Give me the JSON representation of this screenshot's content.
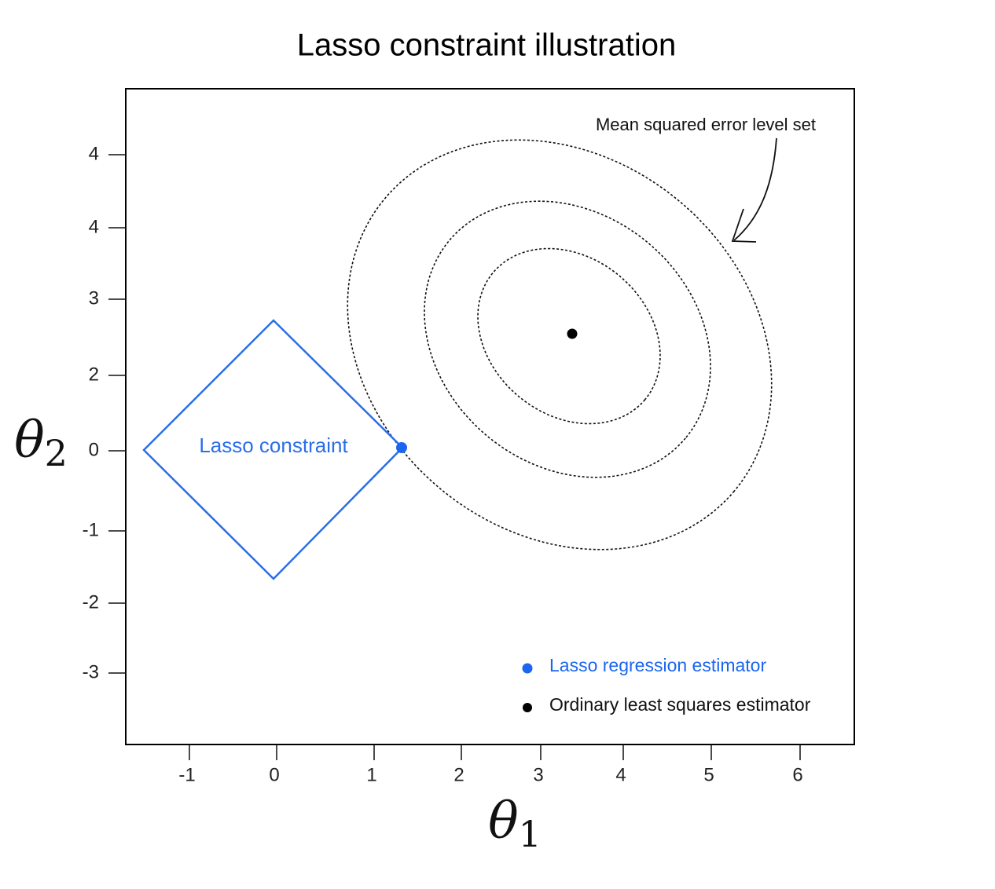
{
  "title": "Lasso constraint illustration",
  "x_axis": {
    "symbol": "θ",
    "subscript": "1",
    "tick_labels": [
      "-1",
      "0",
      "1",
      "2",
      "3",
      "4",
      "5",
      "6"
    ]
  },
  "y_axis": {
    "symbol": "θ",
    "subscript": "2",
    "tick_labels": [
      "4",
      "4",
      "3",
      "2",
      "0",
      "-1",
      "-2",
      "-3"
    ]
  },
  "constraint_label": "Lasso constraint",
  "annotation": "Mean squared error level set",
  "legend": [
    "Lasso regression estimator",
    "Ordinary least squares estimator"
  ]
}
